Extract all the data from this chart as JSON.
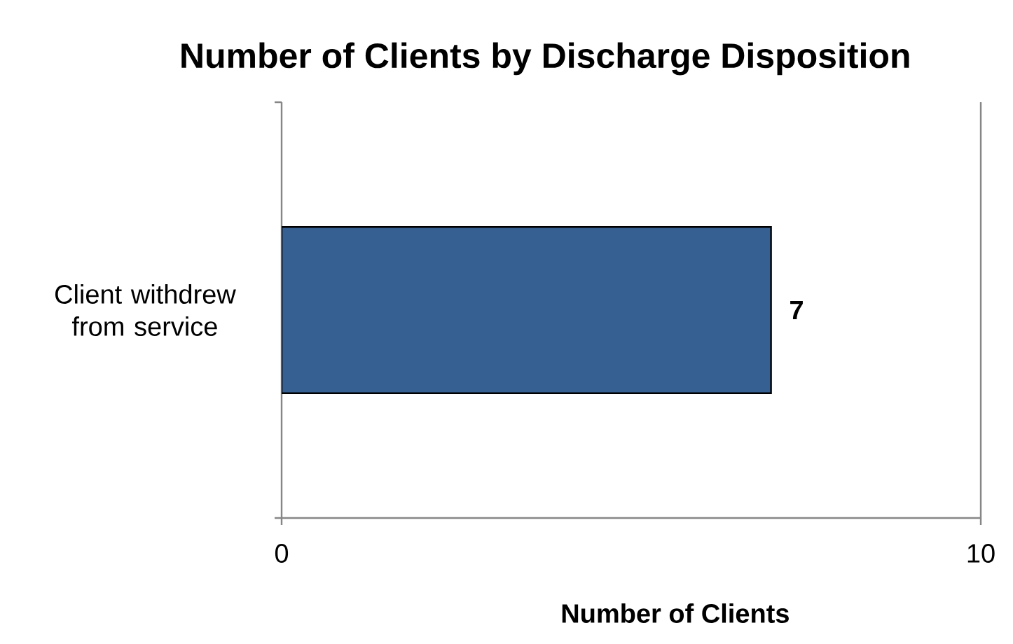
{
  "chart_data": {
    "type": "bar",
    "orientation": "horizontal",
    "title": "Number of Clients by Discharge Disposition",
    "xlabel": "Number of Clients",
    "categories": [
      "Client withdrew from service"
    ],
    "values": [
      7
    ],
    "color": "#376092",
    "xlim": [
      0,
      10
    ],
    "xticks": [
      0,
      10
    ],
    "data_labels": true
  }
}
